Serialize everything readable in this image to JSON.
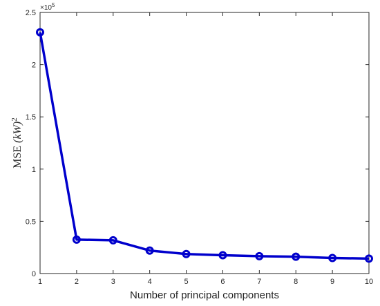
{
  "chart_data": {
    "type": "line",
    "xlabel": "Number of principal components",
    "ylabel_text": "MSE",
    "ylabel_unit": "(kW)",
    "ylabel_exponent": "2",
    "y_multiplier": "×10",
    "y_multiplier_exponent": "5",
    "x": [
      1,
      2,
      3,
      4,
      5,
      6,
      7,
      8,
      9,
      10
    ],
    "series": [
      {
        "values": [
          231000,
          32500,
          31800,
          22000,
          18700,
          17500,
          16600,
          16100,
          14900,
          14300
        ],
        "color": "#0000cc"
      }
    ],
    "xlim": [
      1,
      10
    ],
    "ylim": [
      0,
      250000
    ],
    "x_ticks": [
      "1",
      "2",
      "3",
      "4",
      "5",
      "6",
      "7",
      "8",
      "9",
      "10"
    ],
    "y_ticks": [
      {
        "value": 0,
        "label": "0"
      },
      {
        "value": 50000,
        "label": "0.5"
      },
      {
        "value": 100000,
        "label": "1"
      },
      {
        "value": 150000,
        "label": "1.5"
      },
      {
        "value": 200000,
        "label": "2"
      },
      {
        "value": 250000,
        "label": "2.5"
      }
    ],
    "grid": false,
    "marker": "circle"
  }
}
